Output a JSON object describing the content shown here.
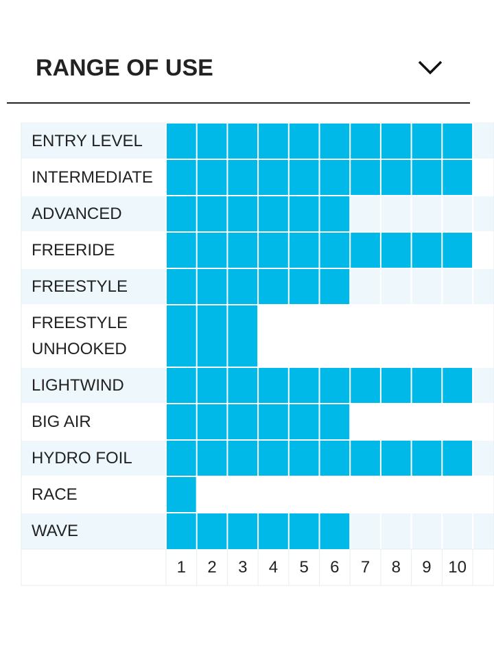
{
  "chart_data": {
    "type": "bar",
    "orientation": "horizontal",
    "title": "RANGE OF USE",
    "categories": [
      "ENTRY LEVEL",
      "INTERMEDIATE",
      "ADVANCED",
      "FREERIDE",
      "FREESTYLE",
      "FREESTYLE UNHOOKED",
      "LIGHTWIND",
      "BIG AIR",
      "HYDRO FOIL",
      "RACE",
      "WAVE"
    ],
    "values": [
      10,
      10,
      6,
      10,
      6,
      3,
      10,
      6,
      10,
      1,
      6
    ],
    "color": "#00b9e8",
    "xlim": [
      0,
      10
    ],
    "xticks": [
      1,
      2,
      3,
      4,
      5,
      6,
      7,
      8,
      9,
      10
    ],
    "grid": true
  }
}
